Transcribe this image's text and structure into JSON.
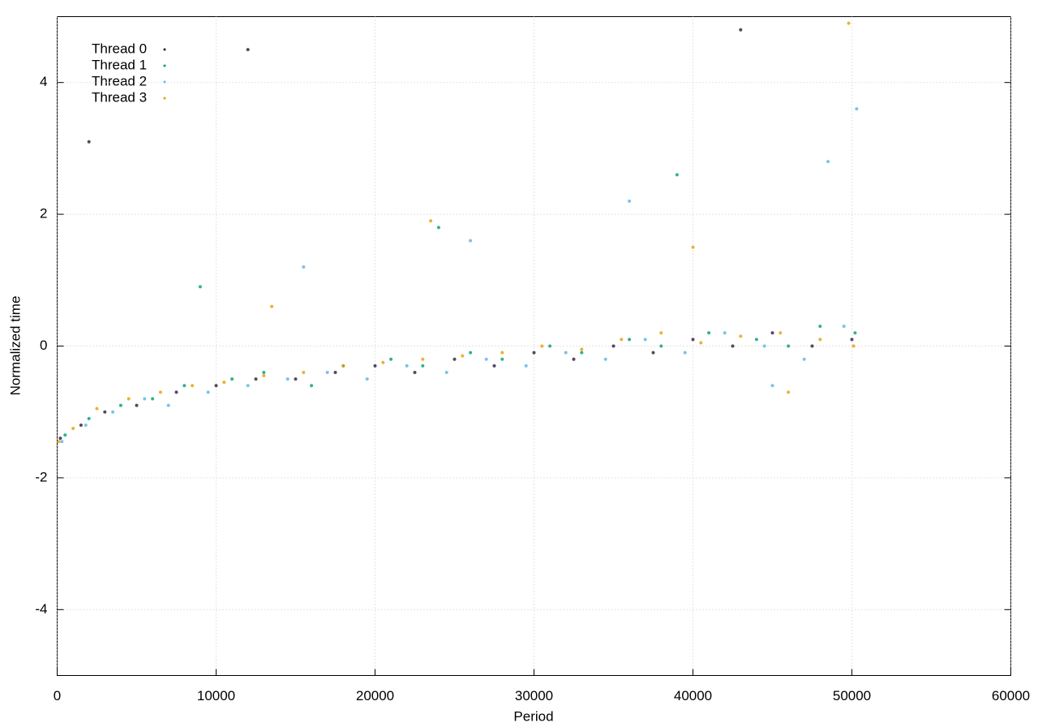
{
  "chart_data": {
    "type": "scatter",
    "xlabel": "Period",
    "ylabel": "Normalized time",
    "xlim": [
      0,
      60000
    ],
    "ylim": [
      -5,
      5
    ],
    "xticks": [
      0,
      10000,
      20000,
      30000,
      40000,
      50000,
      60000
    ],
    "yticks": [
      -4,
      -2,
      0,
      2,
      4
    ],
    "grid": true,
    "legend": "top-left",
    "series": [
      {
        "name": "Thread 0",
        "color": "#2a1a3a",
        "x": [
          200,
          1500,
          3000,
          5000,
          7500,
          10000,
          12500,
          15000,
          17500,
          20000,
          22500,
          25000,
          27500,
          30000,
          32500,
          35000,
          37500,
          40000,
          42500,
          45000,
          47500,
          50000,
          2000,
          12000,
          43000
        ],
        "values": [
          -1.4,
          -1.2,
          -1.0,
          -0.9,
          -0.7,
          -0.6,
          -0.5,
          -0.5,
          -0.4,
          -0.3,
          -0.4,
          -0.2,
          -0.3,
          -0.1,
          -0.2,
          0.0,
          -0.1,
          0.1,
          0.0,
          0.2,
          0.0,
          0.1,
          3.1,
          4.5,
          4.8
        ]
      },
      {
        "name": "Thread 1",
        "color": "#009e73",
        "x": [
          500,
          2000,
          4000,
          6000,
          8000,
          11000,
          13000,
          16000,
          18000,
          21000,
          23000,
          26000,
          28000,
          31000,
          33000,
          36000,
          38000,
          41000,
          44000,
          46000,
          48000,
          50200,
          9000,
          24000,
          39000
        ],
        "values": [
          -1.35,
          -1.1,
          -0.9,
          -0.8,
          -0.6,
          -0.5,
          -0.4,
          -0.6,
          -0.3,
          -0.2,
          -0.3,
          -0.1,
          -0.2,
          0.0,
          -0.1,
          0.1,
          0.0,
          0.2,
          0.1,
          0.0,
          0.3,
          0.2,
          0.9,
          1.8,
          2.6
        ]
      },
      {
        "name": "Thread 2",
        "color": "#56b4e9",
        "x": [
          300,
          1800,
          3500,
          5500,
          7000,
          9500,
          12000,
          14500,
          17000,
          19500,
          22000,
          24500,
          27000,
          29500,
          32000,
          34500,
          37000,
          39500,
          42000,
          44500,
          47000,
          49500,
          50300,
          26000,
          48500,
          36000,
          15500,
          45000
        ],
        "values": [
          -1.45,
          -1.2,
          -1.0,
          -0.8,
          -0.9,
          -0.7,
          -0.6,
          -0.5,
          -0.4,
          -0.5,
          -0.3,
          -0.4,
          -0.2,
          -0.3,
          -0.1,
          -0.2,
          0.1,
          -0.1,
          0.2,
          0.0,
          -0.2,
          0.3,
          3.6,
          1.6,
          2.8,
          2.2,
          1.2,
          -0.6
        ]
      },
      {
        "name": "Thread 3",
        "color": "#e69f00",
        "x": [
          100,
          1000,
          2500,
          4500,
          6500,
          8500,
          10500,
          13000,
          15500,
          18000,
          20500,
          23000,
          25500,
          28000,
          30500,
          33000,
          35500,
          38000,
          40500,
          43000,
          45500,
          48000,
          50100,
          23500,
          40000,
          49800,
          13500,
          46000
        ],
        "values": [
          -1.45,
          -1.25,
          -0.95,
          -0.8,
          -0.7,
          -0.6,
          -0.55,
          -0.45,
          -0.4,
          -0.3,
          -0.25,
          -0.2,
          -0.15,
          -0.1,
          0.0,
          -0.05,
          0.1,
          0.2,
          0.05,
          0.15,
          0.2,
          0.1,
          0.0,
          1.9,
          1.5,
          4.9,
          0.6,
          -0.7
        ]
      }
    ]
  }
}
